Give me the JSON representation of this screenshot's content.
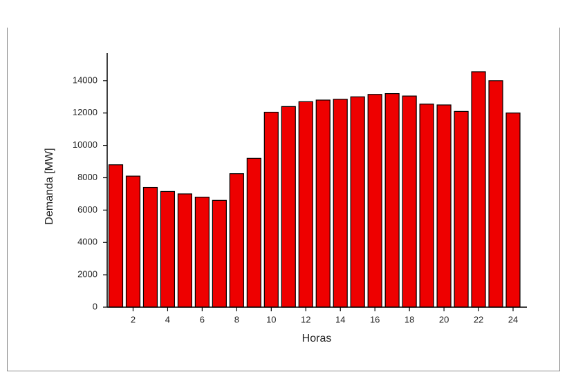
{
  "chart_data": {
    "type": "bar",
    "x_label": "Horas",
    "y_label": "Demanda [MW]",
    "x": [
      1,
      2,
      3,
      4,
      5,
      6,
      7,
      8,
      9,
      10,
      11,
      12,
      13,
      14,
      15,
      16,
      17,
      18,
      19,
      20,
      21,
      22,
      23,
      24
    ],
    "values": [
      8800,
      8100,
      7400,
      7150,
      7000,
      6800,
      6600,
      8250,
      9200,
      12050,
      12400,
      12700,
      12800,
      12850,
      13000,
      13150,
      13200,
      13050,
      12550,
      12500,
      12100,
      14550,
      14000,
      12000
    ],
    "color": "#ee0000",
    "xlim": [
      0.5,
      24.8
    ],
    "xticks": [
      2,
      4,
      6,
      8,
      10,
      12,
      14,
      16,
      18,
      20,
      22,
      24
    ],
    "ylim": [
      0,
      15700
    ],
    "yticks": [
      0,
      2000,
      4000,
      6000,
      8000,
      10000,
      12000,
      14000
    ],
    "grid": false
  }
}
